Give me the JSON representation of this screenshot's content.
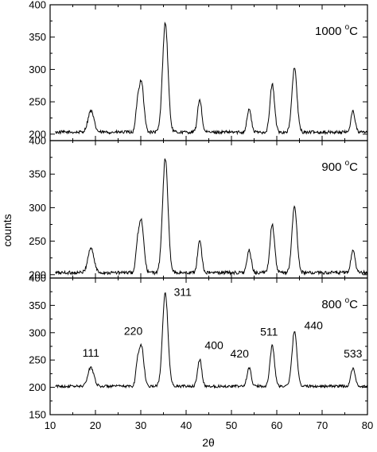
{
  "chart_data": [
    {
      "type": "line",
      "title": "",
      "panel_label": "1000 ",
      "panel_label_sup": "o",
      "panel_label_unit": "C",
      "ylim": [
        190,
        400
      ],
      "yticks": [
        200,
        250,
        300,
        350,
        400
      ],
      "xlim": [
        10,
        80
      ],
      "baseline": 203,
      "noise": 2.5,
      "peaks": [
        {
          "x": 19.0,
          "y": 236,
          "w": 0.65
        },
        {
          "x": 29.2,
          "y": 232,
          "w": 0.35
        },
        {
          "x": 30.1,
          "y": 283,
          "w": 0.55
        },
        {
          "x": 35.4,
          "y": 372,
          "w": 0.6
        },
        {
          "x": 43.0,
          "y": 254,
          "w": 0.45
        },
        {
          "x": 53.9,
          "y": 239,
          "w": 0.45
        },
        {
          "x": 59.0,
          "y": 277,
          "w": 0.5
        },
        {
          "x": 63.9,
          "y": 302,
          "w": 0.55
        },
        {
          "x": 76.8,
          "y": 236,
          "w": 0.45
        }
      ]
    },
    {
      "type": "line",
      "title": "",
      "panel_label": "900 ",
      "panel_label_sup": "o",
      "panel_label_unit": "C",
      "ylim": [
        195,
        400
      ],
      "yticks": [
        200,
        250,
        300,
        350,
        400
      ],
      "xlim": [
        10,
        80
      ],
      "baseline": 203,
      "noise": 2.5,
      "peaks": [
        {
          "x": 19.0,
          "y": 240,
          "w": 0.65
        },
        {
          "x": 29.2,
          "y": 232,
          "w": 0.35
        },
        {
          "x": 30.1,
          "y": 281,
          "w": 0.55
        },
        {
          "x": 35.4,
          "y": 373,
          "w": 0.6
        },
        {
          "x": 43.0,
          "y": 251,
          "w": 0.45
        },
        {
          "x": 53.9,
          "y": 236,
          "w": 0.45
        },
        {
          "x": 59.0,
          "y": 276,
          "w": 0.5
        },
        {
          "x": 63.9,
          "y": 302,
          "w": 0.55
        },
        {
          "x": 76.8,
          "y": 236,
          "w": 0.45
        }
      ]
    },
    {
      "type": "line",
      "title": "",
      "panel_label": "800 ",
      "panel_label_sup": "o",
      "panel_label_unit": "C",
      "ylim": [
        150,
        400
      ],
      "yticks": [
        150,
        200,
        250,
        300,
        350,
        400
      ],
      "xlim": [
        10,
        80
      ],
      "xticks": [
        10,
        20,
        30,
        40,
        50,
        60,
        70,
        80
      ],
      "baseline": 202,
      "noise": 2.5,
      "peaks": [
        {
          "x": 19.0,
          "y": 237,
          "w": 0.65
        },
        {
          "x": 29.2,
          "y": 232,
          "w": 0.35
        },
        {
          "x": 30.1,
          "y": 277,
          "w": 0.55
        },
        {
          "x": 35.4,
          "y": 372,
          "w": 0.6
        },
        {
          "x": 43.0,
          "y": 251,
          "w": 0.45
        },
        {
          "x": 53.9,
          "y": 236,
          "w": 0.45
        },
        {
          "x": 59.0,
          "y": 276,
          "w": 0.5
        },
        {
          "x": 63.9,
          "y": 302,
          "w": 0.55
        },
        {
          "x": 76.8,
          "y": 236,
          "w": 0.45
        }
      ],
      "peak_labels": [
        {
          "text": "111",
          "x": 19.0,
          "y": 237
        },
        {
          "text": "220",
          "x": 30.1,
          "y": 277
        },
        {
          "text": "311",
          "x": 35.4,
          "y": 372
        },
        {
          "text": "400",
          "x": 43.0,
          "y": 251
        },
        {
          "text": "420",
          "x": 53.9,
          "y": 236
        },
        {
          "text": "511",
          "x": 59.0,
          "y": 276
        },
        {
          "text": "440",
          "x": 63.9,
          "y": 302
        },
        {
          "text": "533",
          "x": 76.8,
          "y": 236
        }
      ]
    }
  ],
  "axes": {
    "xlabel": "2θ",
    "ylabel": "counts"
  }
}
